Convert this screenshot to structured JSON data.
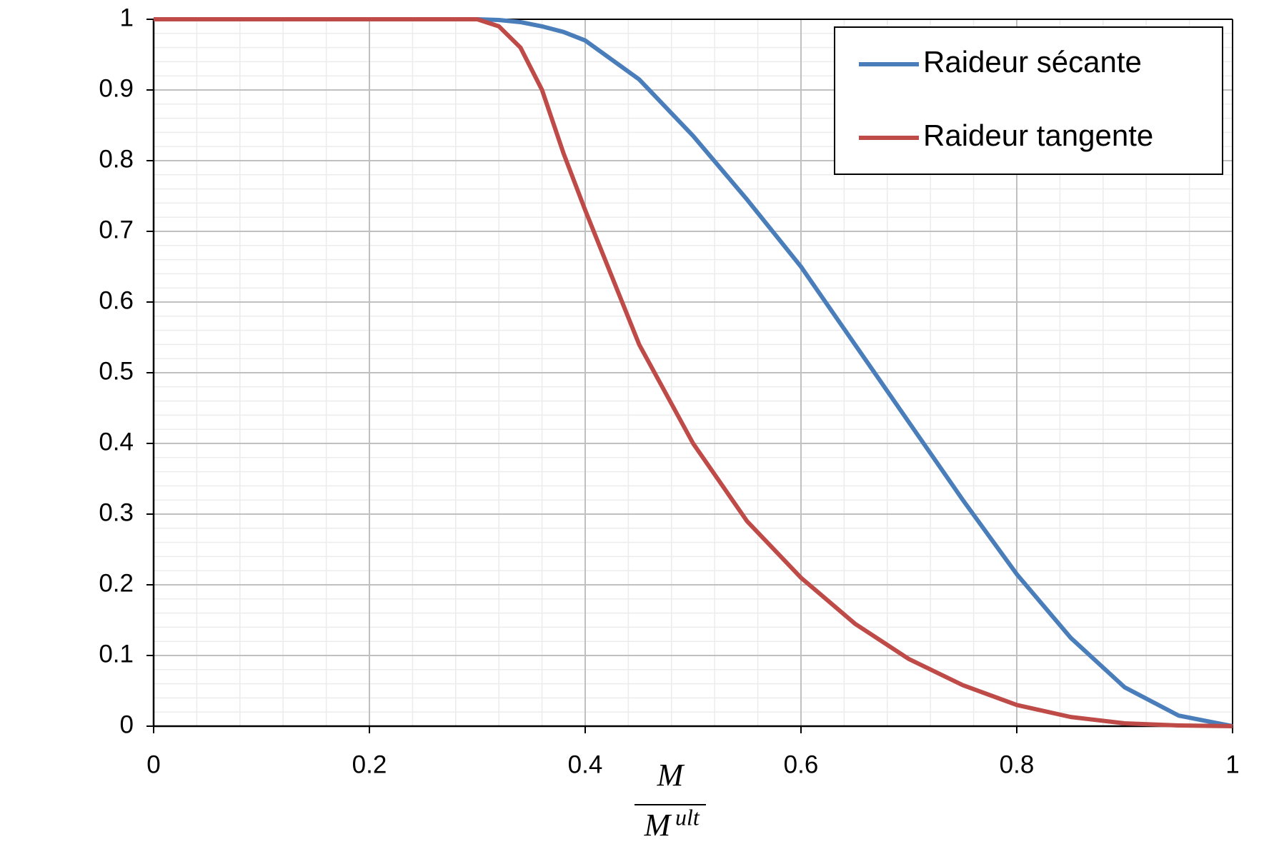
{
  "chart_data": {
    "type": "line",
    "x": [
      0,
      0.1,
      0.2,
      0.3,
      0.32,
      0.34,
      0.36,
      0.38,
      0.4,
      0.45,
      0.5,
      0.55,
      0.6,
      0.65,
      0.7,
      0.75,
      0.8,
      0.85,
      0.9,
      0.95,
      1
    ],
    "series": [
      {
        "name": "Raideur sécante",
        "color": "#4a7ebb",
        "values": [
          1,
          1,
          1,
          1,
          0.999,
          0.996,
          0.99,
          0.982,
          0.97,
          0.915,
          0.835,
          0.745,
          0.65,
          0.54,
          0.43,
          0.32,
          0.215,
          0.125,
          0.055,
          0.015,
          0
        ]
      },
      {
        "name": "Raideur tangente",
        "color": "#be4b48",
        "values": [
          1,
          1,
          1,
          1,
          0.99,
          0.96,
          0.9,
          0.81,
          0.73,
          0.54,
          0.4,
          0.29,
          0.21,
          0.145,
          0.095,
          0.058,
          0.03,
          0.013,
          0.004,
          0.001,
          0
        ]
      }
    ],
    "xlabel_numerator": "M",
    "xlabel_denominator": "M",
    "xlabel_superscript": "ult",
    "xlim": [
      0,
      1
    ],
    "xticks": [
      0,
      0.2,
      0.4,
      0.6,
      0.8,
      1
    ],
    "ylim": [
      0,
      1
    ],
    "yticks": [
      0,
      0.1,
      0.2,
      0.3,
      0.4,
      0.5,
      0.6,
      0.7,
      0.8,
      0.9,
      1
    ],
    "grid": true,
    "minor_grid": true,
    "legend": "top-right"
  }
}
